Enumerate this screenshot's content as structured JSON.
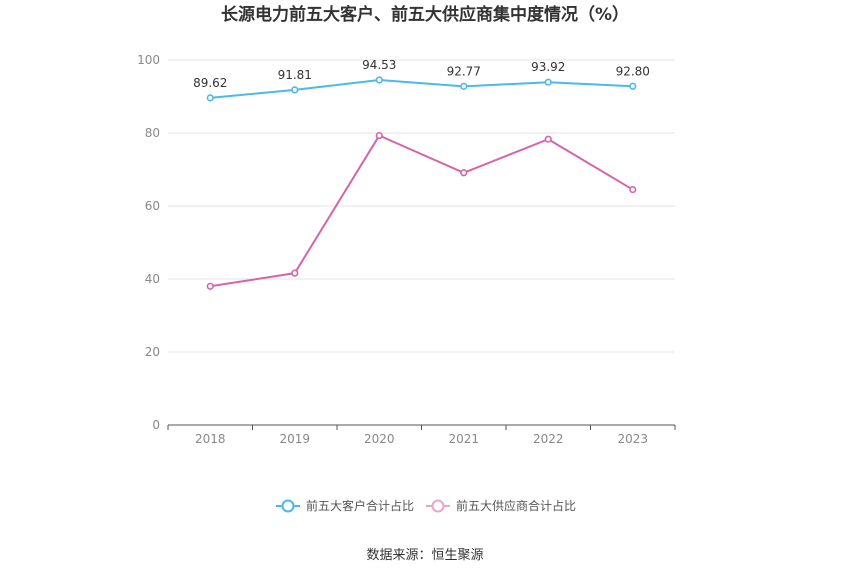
{
  "chart_data": {
    "type": "line",
    "title": "长源电力前五大客户、前五大供应商集中度情况（%）",
    "categories": [
      "2018",
      "2019",
      "2020",
      "2021",
      "2022",
      "2023"
    ],
    "ylim": [
      0,
      100
    ],
    "yticks": [
      0,
      20,
      40,
      60,
      80,
      100
    ],
    "grid": true,
    "legend_position": "bottom",
    "series": [
      {
        "name": "前五大客户合计占比",
        "color": "#4cb9ea",
        "values": [
          89.62,
          91.81,
          94.53,
          92.77,
          93.92,
          92.8
        ],
        "labels": [
          "89.62",
          "91.81",
          "94.53",
          "92.77",
          "93.92",
          "92.80"
        ]
      },
      {
        "name": "前五大供应商合计占比",
        "color": "#d465a8",
        "legend_color": "#eaa5c8",
        "values": [
          38.0,
          41.6,
          79.3,
          69.1,
          78.3,
          64.5
        ]
      }
    ]
  },
  "source": "数据来源：恒生聚源"
}
